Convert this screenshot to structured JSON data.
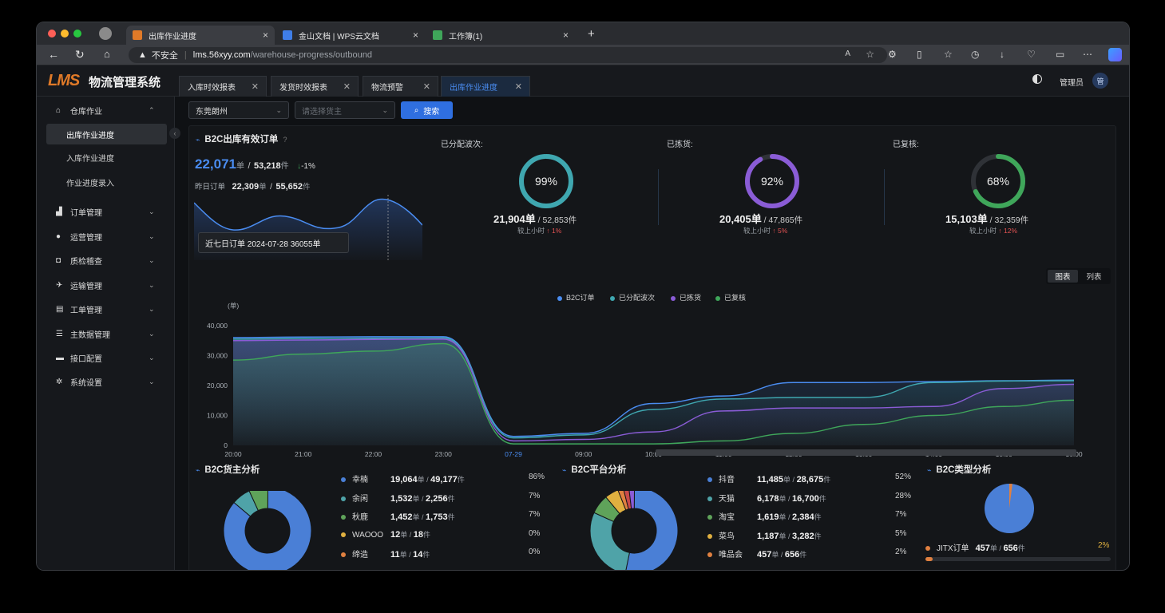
{
  "browser": {
    "tabs": [
      {
        "label": "出库作业进度",
        "close": "×"
      },
      {
        "label": "金山文档 | WPS云文档",
        "close": "×"
      },
      {
        "label": "工作簿(1)",
        "close": "×"
      }
    ],
    "new_tab": "+",
    "security_label": "不安全",
    "url_host": "lms.56xyy.com",
    "url_path": "/warehouse-progress/outbound"
  },
  "app": {
    "logo": "LMS",
    "name": "物流管理系统",
    "user": "管理员",
    "avatar": "管",
    "page_tabs": [
      {
        "label": "入库时效报表"
      },
      {
        "label": "发货时效报表"
      },
      {
        "label": "物流预警"
      },
      {
        "label": "出库作业进度"
      }
    ]
  },
  "sidebar": {
    "warehouse": "仓库作业",
    "subitems": [
      "出库作业进度",
      "入库作业进度",
      "作业进度录入"
    ],
    "items": [
      "订单管理",
      "运营管理",
      "质检稽查",
      "运输管理",
      "工单管理",
      "主数据管理",
      "接口配置",
      "系统设置"
    ]
  },
  "filters": {
    "warehouse": "东莞朗州",
    "owner_placeholder": "请选择货主",
    "search": "搜索"
  },
  "b2c": {
    "title": "B2C出库有效订单",
    "orders": "22,071",
    "unit_order": "单",
    "pieces": "53,218",
    "unit_piece": "件",
    "change": "-1%",
    "yesterday_label": "昨日订单",
    "y_orders": "22,309",
    "y_pieces": "55,652",
    "tooltip": "近七日订单 2024-07-28 36055单"
  },
  "gauges": [
    {
      "title": "已分配波次:",
      "pct": 99,
      "pct_label": "99%",
      "orders": "21,904单",
      "pieces": "52,853件",
      "cmp": "较上小时",
      "delta": "1%",
      "color": "#3fa7b0"
    },
    {
      "title": "已拣货:",
      "pct": 92,
      "pct_label": "92%",
      "orders": "20,405单",
      "pieces": "47,865件",
      "cmp": "较上小时",
      "delta": "5%",
      "color": "#8a5cd6"
    },
    {
      "title": "已复核:",
      "pct": 68,
      "pct_label": "68%",
      "orders": "15,103单",
      "pieces": "32,359件",
      "cmp": "较上小时",
      "delta": "12%",
      "color": "#3fa65a"
    }
  ],
  "view_toggle": {
    "chart": "图表",
    "list": "列表"
  },
  "chart_data": {
    "type": "area",
    "ylabel": "(单)",
    "ylim": [
      0,
      40000
    ],
    "yticks": [
      "40,000",
      "30,000",
      "20,000",
      "10,000",
      "0"
    ],
    "x": [
      "20:00",
      "21:00",
      "22:00",
      "23:00",
      "07-29",
      "09:00",
      "10:00",
      "11:00",
      "12:00",
      "13:00",
      "14:00",
      "15:00",
      "16:00"
    ],
    "legend": "top-center",
    "series": [
      {
        "name": "B2C订单",
        "color": "#4a8cf0",
        "values": [
          36000,
          36200,
          36300,
          36300,
          3000,
          4000,
          14000,
          16500,
          21000,
          21000,
          21300,
          21600,
          21800
        ]
      },
      {
        "name": "已分配波次",
        "color": "#3fa7b0",
        "values": [
          35500,
          35700,
          35800,
          35900,
          2500,
          3500,
          12000,
          15500,
          16000,
          16000,
          21000,
          21500,
          21600
        ]
      },
      {
        "name": "已拣货",
        "color": "#8a5cd6",
        "values": [
          35000,
          35200,
          35400,
          35500,
          1500,
          2000,
          4500,
          11500,
          12500,
          12500,
          13000,
          19000,
          20400
        ]
      },
      {
        "name": "已复核",
        "color": "#3fa65a",
        "values": [
          28500,
          30500,
          31500,
          34000,
          500,
          500,
          500,
          1500,
          4000,
          7000,
          10000,
          13000,
          15100
        ]
      }
    ]
  },
  "owner_analysis": {
    "title": "B2C货主分析",
    "rows": [
      {
        "name": "幸楠",
        "orders": "19,064",
        "pieces": "49,177",
        "pct": "86%",
        "value": 86,
        "color": "#4a7fd6"
      },
      {
        "name": "余闲",
        "orders": "1,532",
        "pieces": "2,256",
        "pct": "7%",
        "value": 7,
        "color": "#4fa3a8"
      },
      {
        "name": "秋鹿",
        "orders": "1,452",
        "pieces": "1,753",
        "pct": "7%",
        "value": 7,
        "color": "#5fa35a"
      },
      {
        "name": "WAOOO",
        "orders": "12",
        "pieces": "18",
        "pct": "0%",
        "value": 0,
        "color": "#e0b040"
      },
      {
        "name": "缔造",
        "orders": "11",
        "pieces": "14",
        "pct": "0%",
        "value": 0,
        "color": "#e08040"
      }
    ]
  },
  "platform_analysis": {
    "title": "B2C平台分析",
    "rows": [
      {
        "name": "抖音",
        "orders": "11,485",
        "pieces": "28,675",
        "pct": "52%",
        "value": 52,
        "color": "#4a7fd6"
      },
      {
        "name": "天猫",
        "orders": "6,178",
        "pieces": "16,700",
        "pct": "28%",
        "value": 28,
        "color": "#4fa3a8"
      },
      {
        "name": "淘宝",
        "orders": "1,619",
        "pieces": "2,384",
        "pct": "7%",
        "value": 7,
        "color": "#5fa35a"
      },
      {
        "name": "菜鸟",
        "orders": "1,187",
        "pieces": "3,282",
        "pct": "5%",
        "value": 5,
        "color": "#e0b040"
      },
      {
        "name": "唯品会",
        "orders": "457",
        "pieces": "656",
        "pct": "2%",
        "value": 2,
        "color": "#e08040"
      }
    ],
    "rest_colors": [
      "#c94a4a",
      "#8a5cd6"
    ]
  },
  "type_analysis": {
    "title": "B2C类型分析",
    "row": {
      "name": "JITX订单",
      "orders": "457",
      "pieces": "656",
      "pct": "2%",
      "value": 2,
      "color": "#e08040"
    }
  }
}
